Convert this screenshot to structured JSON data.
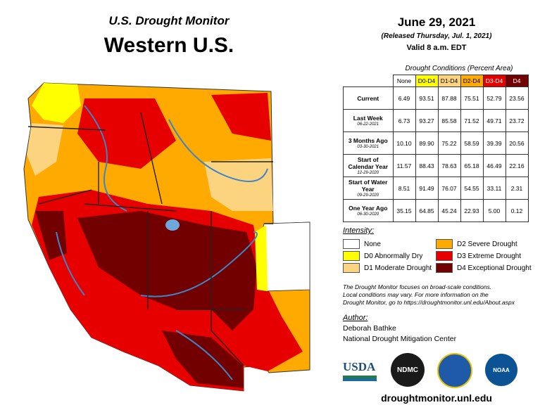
{
  "header": {
    "subtitle": "U.S. Drought Monitor",
    "title": "Western U.S."
  },
  "date": {
    "main": "June 29, 2021",
    "released": "(Released Thursday, Jul. 1, 2021)",
    "valid": "Valid 8 a.m. EDT"
  },
  "table": {
    "caption": "Drought Conditions (Percent Area)",
    "columns": [
      {
        "label": "None",
        "color": "#ffffff"
      },
      {
        "label": "D0-D4",
        "color": "#ffff00"
      },
      {
        "label": "D1-D4",
        "color": "#fcd37f"
      },
      {
        "label": "D2-D4",
        "color": "#ffaa00"
      },
      {
        "label": "D3-D4",
        "color": "#e60000"
      },
      {
        "label": "D4",
        "color": "#730000"
      }
    ],
    "rows": [
      {
        "label": "Current",
        "cells": [
          "6.49",
          "93.51",
          "87.88",
          "75.51",
          "52.79",
          "23.56"
        ]
      },
      {
        "label": "Last Week",
        "date": "06-22-2021",
        "cells": [
          "6.73",
          "93.27",
          "85.58",
          "71.52",
          "49.71",
          "23.72"
        ]
      },
      {
        "label": "3 Months Ago",
        "date": "03-30-2021",
        "cells": [
          "10.10",
          "89.90",
          "75.22",
          "58.59",
          "39.39",
          "20.56"
        ]
      },
      {
        "label": "Start of Calendar Year",
        "date": "12-29-2020",
        "cells": [
          "11.57",
          "88.43",
          "78.63",
          "65.18",
          "46.49",
          "22.16"
        ]
      },
      {
        "label": "Start of Water Year",
        "date": "09-29-2020",
        "cells": [
          "8.51",
          "91.49",
          "76.07",
          "54.55",
          "33.11",
          "2.31"
        ]
      },
      {
        "label": "One Year Ago",
        "date": "06-30-2020",
        "cells": [
          "35.15",
          "64.85",
          "45.24",
          "22.93",
          "5.00",
          "0.12"
        ]
      }
    ]
  },
  "legend": {
    "title": "Intensity:",
    "items": [
      {
        "label": "None",
        "color": "#ffffff"
      },
      {
        "label": "D2 Severe Drought",
        "color": "#ffaa00"
      },
      {
        "label": "D0 Abnormally Dry",
        "color": "#ffff00"
      },
      {
        "label": "D3 Extreme Drought",
        "color": "#e60000"
      },
      {
        "label": "D1 Moderate Drought",
        "color": "#fcd37f"
      },
      {
        "label": "D4 Exceptional Drought",
        "color": "#730000"
      }
    ]
  },
  "note": [
    "The Drought Monitor focuses on broad-scale conditions.",
    "Local conditions may vary. For more information on the",
    "Drought Monitor, go to https://droughtmonitor.unl.edu/About.aspx"
  ],
  "author": {
    "heading": "Author:",
    "name": "Deborah Bathke",
    "org": "National Drought Mitigation Center"
  },
  "logos": [
    "USDA",
    "NDMC",
    "NOAA"
  ],
  "url": "droughtmonitor.unl.edu"
}
